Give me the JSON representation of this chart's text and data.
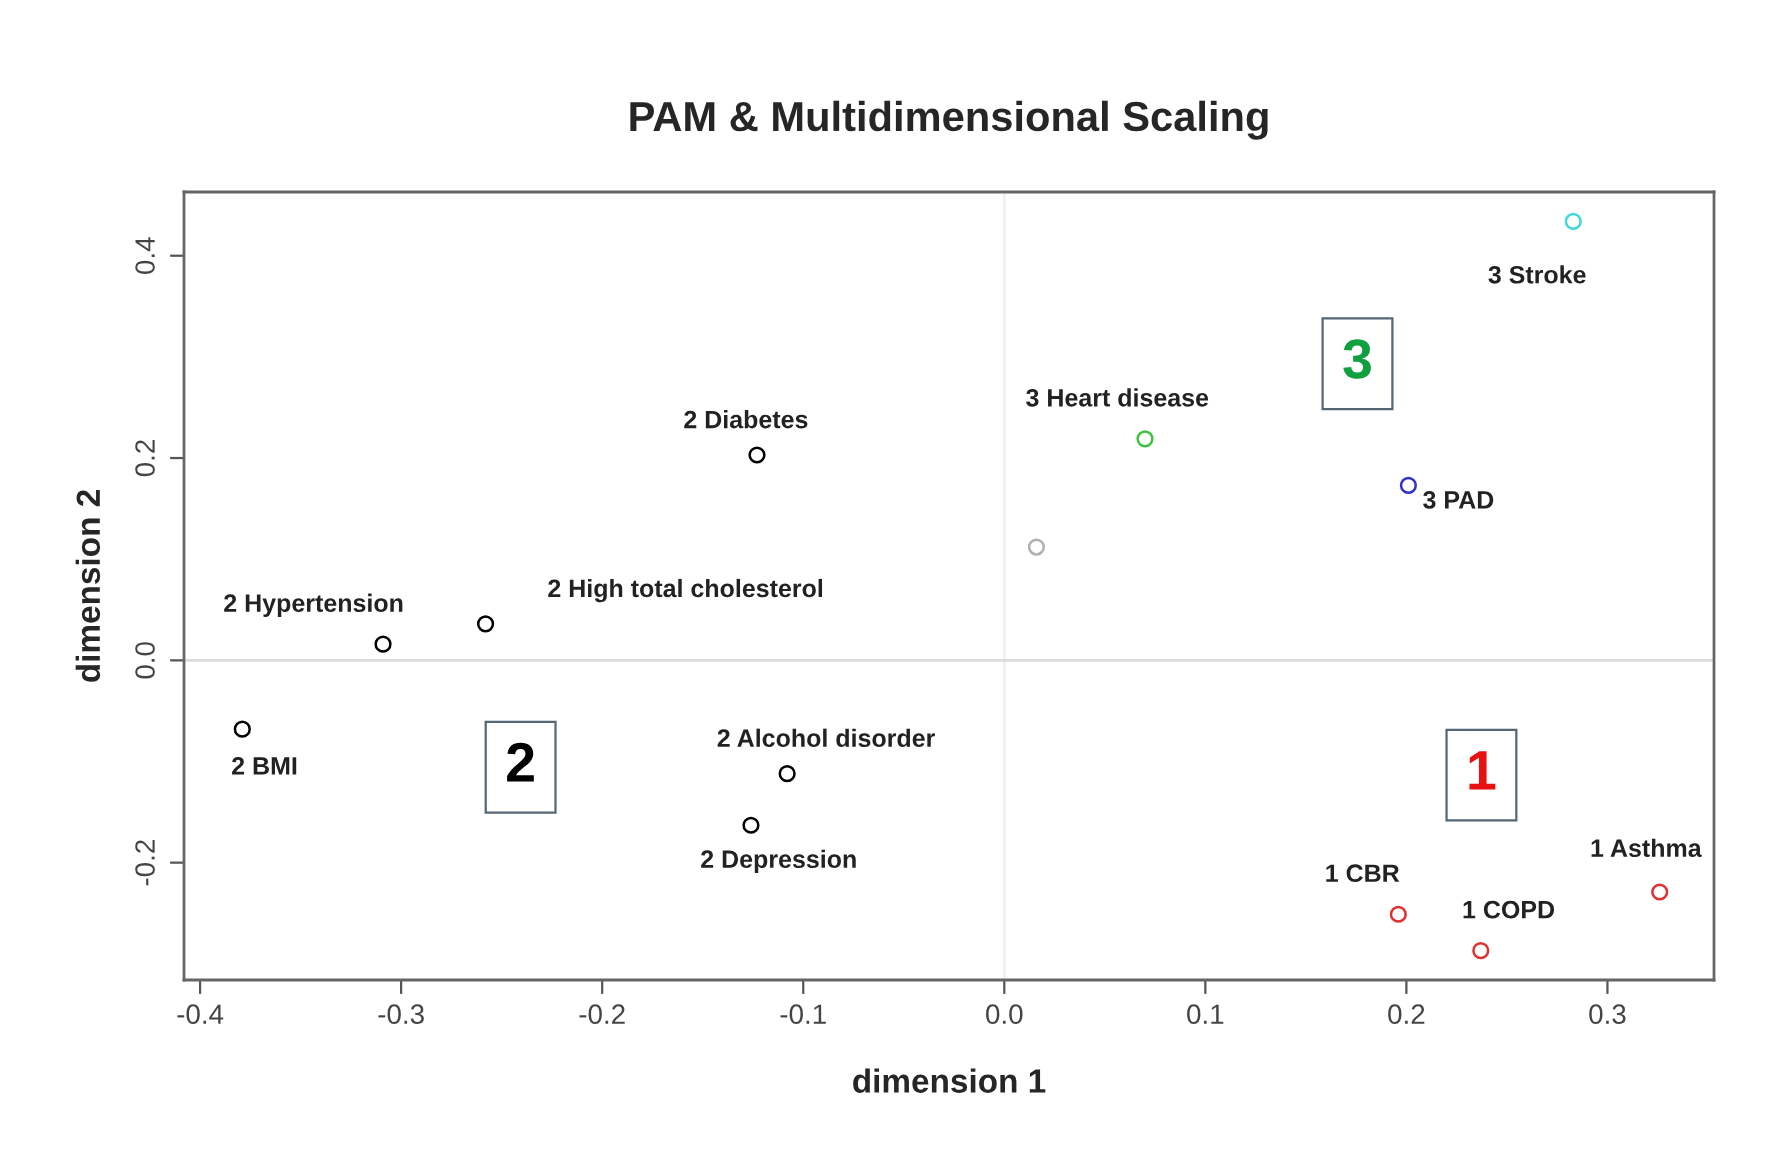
{
  "chart_data": {
    "type": "scatter",
    "title": "PAM & Multidimensional Scaling",
    "xlabel": "dimension 1",
    "ylabel": "dimension 2",
    "series": [
      {
        "x": [
          -0.379,
          -0.309,
          -0.258,
          -0.123,
          -0.108,
          -0.126,
          0.196,
          0.237,
          0.326,
          0.07,
          0.201,
          0.283,
          0.016
        ],
        "values": [
          -0.068,
          0.016,
          0.036,
          0.203,
          -0.112,
          -0.163,
          -0.251,
          -0.287,
          -0.229,
          0.219,
          0.173,
          0.434,
          0.112
        ],
        "colors": [
          "#000000",
          "#000000",
          "#000000",
          "#000000",
          "#000000",
          "#000000",
          "#e03030",
          "#e03030",
          "#e03030",
          "#40c040",
          "#3030d0",
          "#40d8d8",
          "#b0b0b0"
        ]
      }
    ],
    "marker": "circle",
    "xlim": [
      -0.408,
      0.353
    ],
    "ylim": [
      -0.316,
      0.463
    ],
    "xticks": [
      -0.4,
      -0.3,
      -0.2,
      -0.1,
      {
        "value": 0,
        "label": "0.0"
      },
      0.1,
      0.2,
      0.3
    ],
    "yticks": [
      {
        "value": -0.2,
        "label": "-0.2"
      },
      {
        "value": 0.0,
        "label": "0.0"
      },
      {
        "value": 0.2,
        "label": "0.2"
      },
      {
        "value": 0.4,
        "label": "0.4"
      }
    ],
    "ref_lines": [
      {
        "axis": "x",
        "value": 0,
        "color": "#f0f0f0"
      },
      {
        "axis": "y",
        "value": 0,
        "color": "#dcdcdc"
      }
    ],
    "grid": false,
    "annotations": [
      {
        "text": "2 BMI",
        "x": -0.379,
        "y": -0.068
      },
      {
        "text": "2 Hypertension",
        "x": -0.309,
        "y": 0.016
      },
      {
        "text": "2 High total cholesterol",
        "x": -0.258,
        "y": 0.036
      },
      {
        "text": "2 Diabetes",
        "x": -0.123,
        "y": 0.203
      },
      {
        "text": "2 Alcohol disorder",
        "x": -0.108,
        "y": -0.112
      },
      {
        "text": "2 Depression",
        "x": -0.126,
        "y": -0.163
      },
      {
        "text": "1 CBR",
        "x": 0.196,
        "y": -0.251
      },
      {
        "text": "1 COPD",
        "x": 0.237,
        "y": -0.287
      },
      {
        "text": "1 Asthma",
        "x": 0.326,
        "y": -0.229
      },
      {
        "text": "3 Heart disease",
        "x": 0.07,
        "y": 0.219
      },
      {
        "text": "3 PAD",
        "x": 0.201,
        "y": 0.173
      },
      {
        "text": "3 Stroke",
        "x": 0.283,
        "y": 0.434
      },
      "2",
      "1",
      "3"
    ]
  }
}
